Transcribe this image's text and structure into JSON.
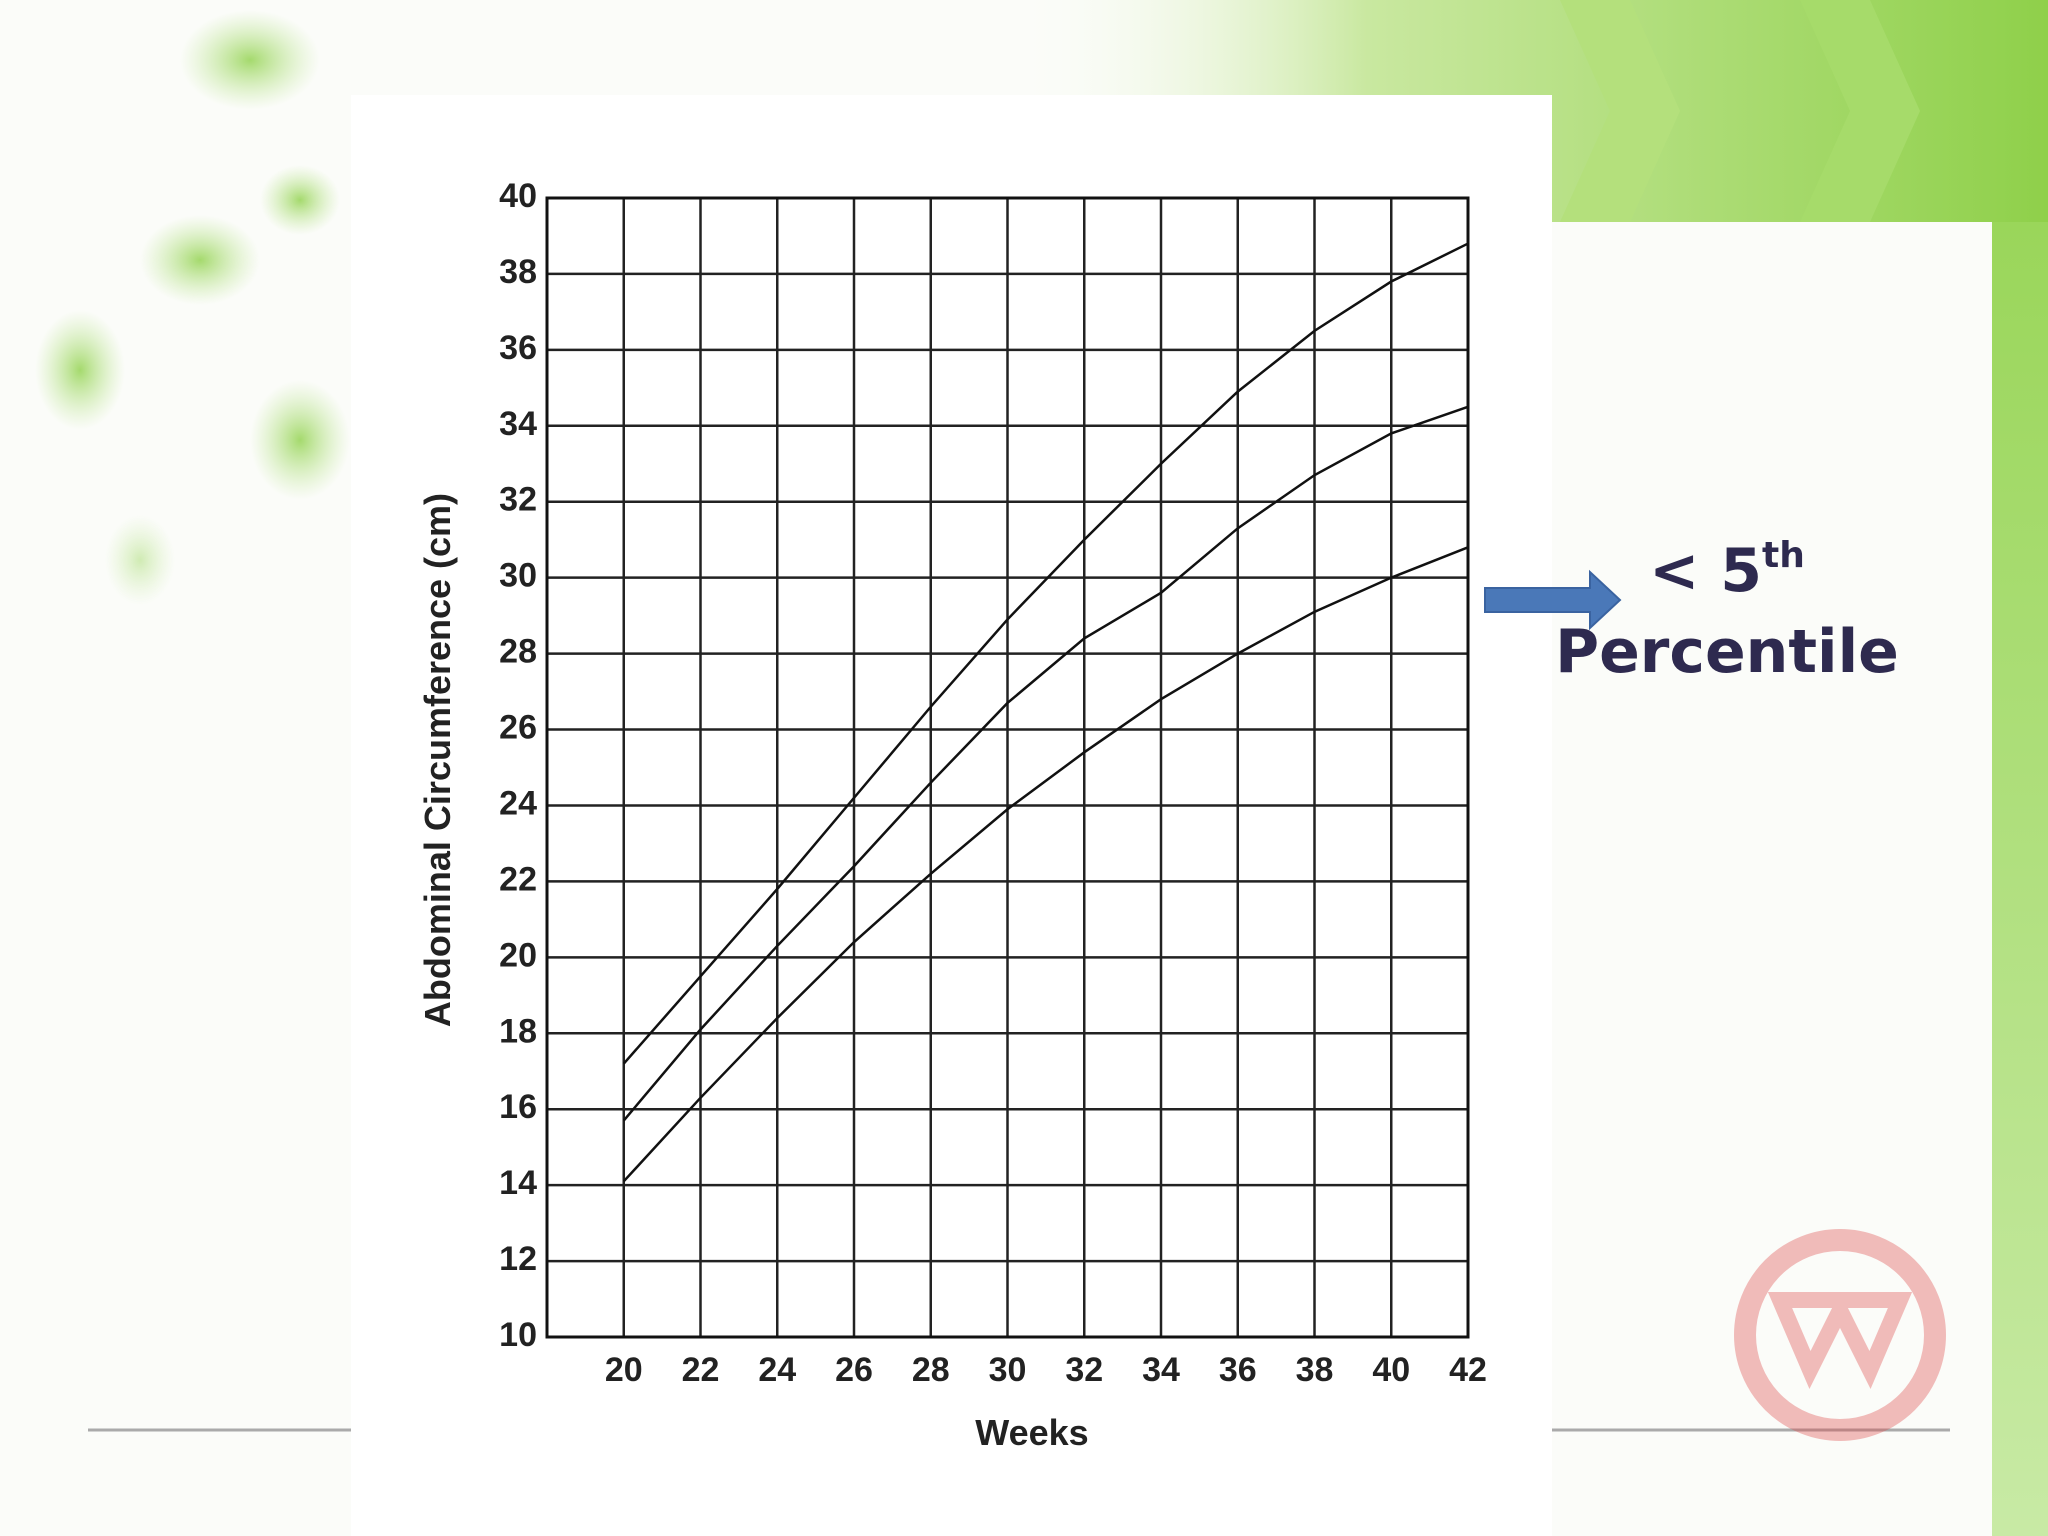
{
  "chart_data": {
    "type": "line",
    "x_label": "Weeks",
    "y_label": "Abdominal Circumference (cm)",
    "x": [
      20,
      22,
      24,
      26,
      28,
      30,
      32,
      34,
      36,
      38,
      40,
      42
    ],
    "series": [
      {
        "color": "#111111",
        "values": [
          17.2,
          19.5,
          21.8,
          24.2,
          26.6,
          28.9,
          31.0,
          33.0,
          34.9,
          36.5,
          37.8,
          38.8
        ]
      },
      {
        "color": "#111111",
        "values": [
          15.7,
          18.1,
          20.3,
          22.4,
          24.6,
          26.7,
          28.4,
          29.6,
          31.3,
          32.7,
          33.8,
          34.5
        ]
      },
      {
        "color": "#111111",
        "values": [
          14.1,
          16.3,
          18.4,
          20.4,
          22.2,
          23.9,
          25.4,
          26.8,
          28.0,
          29.1,
          30.0,
          30.8
        ]
      }
    ],
    "xlim": [
      18,
      42
    ],
    "ylim": [
      10,
      40
    ],
    "xticks": [
      20,
      22,
      24,
      26,
      28,
      30,
      32,
      34,
      36,
      38,
      40,
      42
    ],
    "yticks": [
      10,
      12,
      14,
      16,
      18,
      20,
      22,
      24,
      26,
      28,
      30,
      32,
      34,
      36,
      38,
      40
    ],
    "grid": true,
    "annotation": {
      "text": "< 5",
      "superscript": "th",
      "second_line": "Percentile"
    }
  }
}
